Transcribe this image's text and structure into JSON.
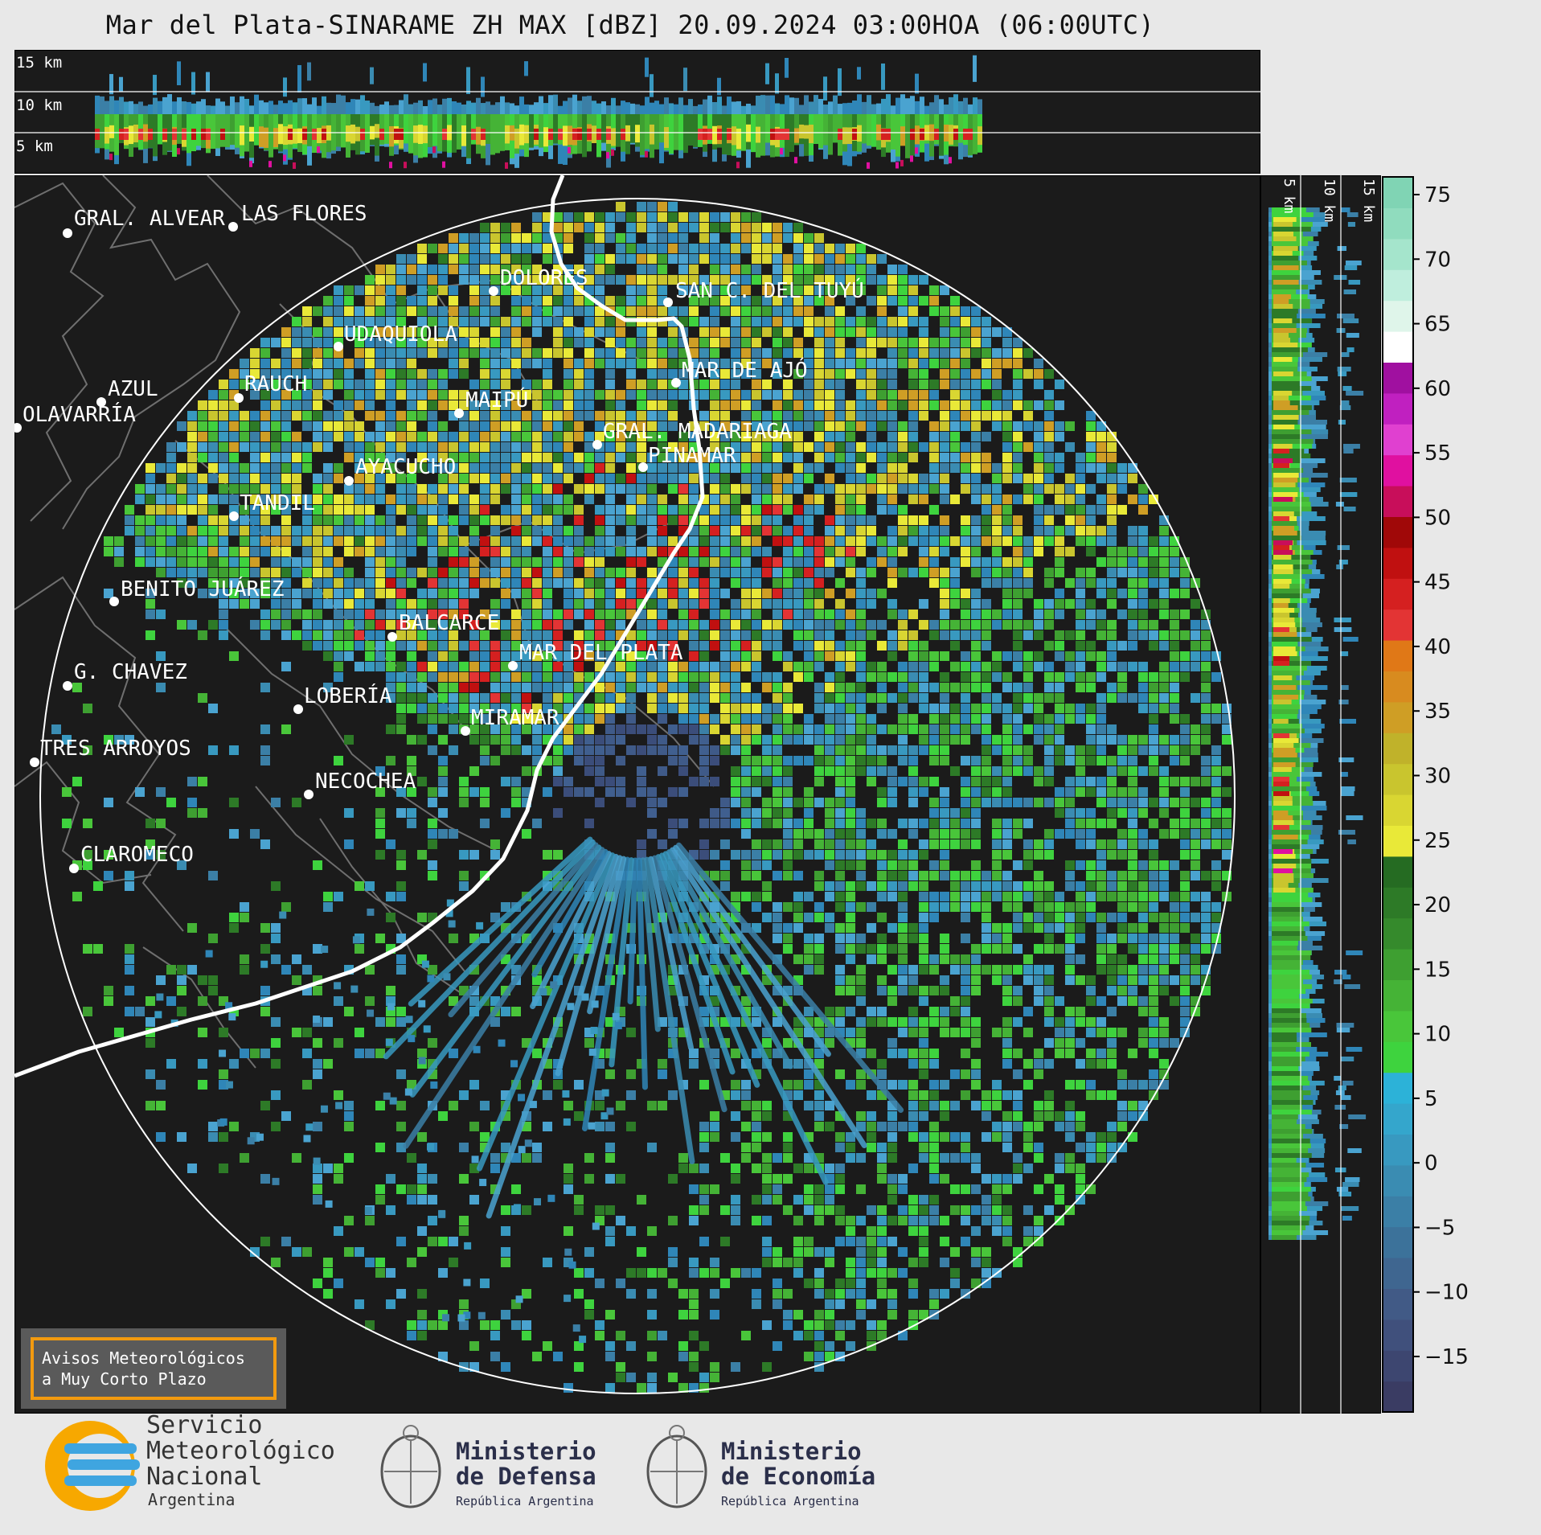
{
  "title": "Mar del Plata-SINARAME ZH MAX [dBZ] 20.09.2024 03:00HOA (06:00UTC)",
  "top_panel": {
    "height_labels": [
      "15 km",
      "10 km",
      "5 km"
    ]
  },
  "side_panel": {
    "height_labels": [
      "5 km",
      "10 km",
      "15 km"
    ]
  },
  "colorbar": {
    "ticks": [
      "75",
      "70",
      "65",
      "60",
      "55",
      "50",
      "45",
      "40",
      "35",
      "30",
      "25",
      "20",
      "15",
      "10",
      "5",
      "0",
      "−5",
      "−10",
      "−15"
    ],
    "colors": [
      "#3a3c63",
      "#3d4670",
      "#40507c",
      "#415a86",
      "#3f6690",
      "#3c729a",
      "#3b7fa6",
      "#3a8cb2",
      "#3899c0",
      "#34a6cc",
      "#2cb2d8",
      "#3ed33e",
      "#49c63a",
      "#45b336",
      "#3e9f31",
      "#358a2c",
      "#2d7a27",
      "#256b22",
      "#e9e938",
      "#d9d632",
      "#c9c52e",
      "#c0b22a",
      "#cf9e25",
      "#d88b1f",
      "#e07817",
      "#e33434",
      "#d52020",
      "#c01010",
      "#a00808",
      "#c80e5a",
      "#e010a0",
      "#e040d0",
      "#c020c0",
      "#a010a0",
      "#ffffff",
      "#dff5ea",
      "#bfeedd",
      "#a5e5cc",
      "#90dcbe",
      "#80d4b4"
    ]
  },
  "cities": [
    {
      "name": "GRAL. ALVEAR"
    },
    {
      "name": "LAS FLORES"
    },
    {
      "name": "DOLORES"
    },
    {
      "name": "SAN C. DEL TUYÚ"
    },
    {
      "name": "UDAQUIOLA"
    },
    {
      "name": "MAR DE AJÓ"
    },
    {
      "name": "AZUL"
    },
    {
      "name": "RAUCH"
    },
    {
      "name": "OLAVARRÍA"
    },
    {
      "name": "MAIPÚ"
    },
    {
      "name": "GRAL. MADARIAGA"
    },
    {
      "name": "PINAMAR"
    },
    {
      "name": "AYACUCHO"
    },
    {
      "name": "TANDIL"
    },
    {
      "name": "BENITO JUÁREZ"
    },
    {
      "name": "BALCARCE"
    },
    {
      "name": "MAR DEL PLATA"
    },
    {
      "name": "G. CHAVEZ"
    },
    {
      "name": "LOBERÍA"
    },
    {
      "name": "MIRAMAR"
    },
    {
      "name": "TRES ARROYOS"
    },
    {
      "name": "NECOCHEA"
    },
    {
      "name": "CLAROMECO"
    }
  ],
  "notice": {
    "line1": "Avisos Meteorológicos",
    "line2": "a Muy Corto Plazo"
  },
  "logos": {
    "smn": {
      "line1": "Servicio",
      "line2": "Meteorológico",
      "line3": "Nacional",
      "line4": "Argentina"
    },
    "defensa": {
      "line1": "Ministerio",
      "line2": "de Defensa",
      "line3": "República Argentina"
    },
    "economia": {
      "line1": "Ministerio",
      "line2": "de Economía",
      "line3": "República Argentina"
    }
  }
}
